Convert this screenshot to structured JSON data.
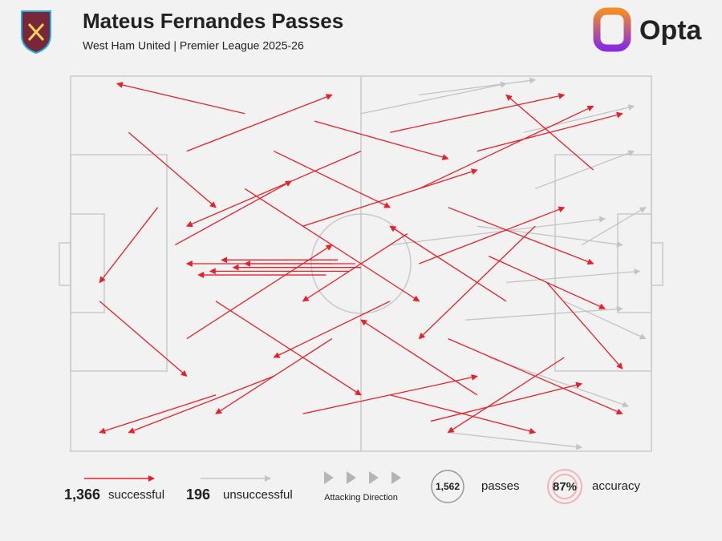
{
  "header": {
    "title": "Mateus Fernandes Passes",
    "subtitle": "West Ham United | Premier League 2025-26",
    "brand": "Opta"
  },
  "passes": {
    "successful": [
      [
        45,
        50,
        20,
        50
      ],
      [
        48,
        52,
        24,
        52
      ],
      [
        50,
        51,
        28,
        51
      ],
      [
        44,
        53,
        22,
        53
      ],
      [
        46,
        49,
        26,
        49
      ],
      [
        49,
        50,
        30,
        50
      ],
      [
        20,
        20,
        45,
        5
      ],
      [
        30,
        10,
        8,
        2
      ],
      [
        55,
        15,
        85,
        5
      ],
      [
        60,
        30,
        90,
        8
      ],
      [
        70,
        20,
        95,
        10
      ],
      [
        15,
        35,
        5,
        55
      ],
      [
        25,
        60,
        50,
        85
      ],
      [
        35,
        80,
        10,
        95
      ],
      [
        55,
        85,
        80,
        95
      ],
      [
        65,
        70,
        95,
        90
      ],
      [
        75,
        60,
        55,
        40
      ],
      [
        40,
        40,
        70,
        25
      ],
      [
        30,
        30,
        60,
        60
      ],
      [
        50,
        20,
        20,
        40
      ],
      [
        60,
        50,
        85,
        35
      ],
      [
        80,
        40,
        60,
        70
      ],
      [
        20,
        70,
        45,
        45
      ],
      [
        40,
        90,
        70,
        80
      ],
      [
        55,
        60,
        35,
        75
      ],
      [
        85,
        75,
        65,
        95
      ],
      [
        10,
        15,
        25,
        35
      ],
      [
        5,
        60,
        20,
        80
      ],
      [
        70,
        85,
        50,
        65
      ],
      [
        65,
        35,
        90,
        50
      ],
      [
        45,
        70,
        25,
        90
      ],
      [
        35,
        20,
        55,
        35
      ],
      [
        90,
        25,
        75,
        5
      ],
      [
        25,
        85,
        5,
        95
      ],
      [
        58,
        42,
        40,
        60
      ],
      [
        72,
        48,
        92,
        62
      ],
      [
        18,
        45,
        38,
        28
      ],
      [
        62,
        92,
        88,
        82
      ],
      [
        42,
        12,
        65,
        22
      ],
      [
        82,
        55,
        95,
        78
      ]
    ],
    "unsuccessful": [
      [
        70,
        40,
        95,
        45
      ],
      [
        75,
        55,
        98,
        52
      ],
      [
        80,
        30,
        97,
        20
      ],
      [
        85,
        60,
        99,
        70
      ],
      [
        60,
        5,
        80,
        1
      ],
      [
        65,
        95,
        88,
        99
      ],
      [
        72,
        75,
        96,
        88
      ],
      [
        55,
        45,
        92,
        38
      ],
      [
        78,
        15,
        97,
        8
      ],
      [
        68,
        65,
        95,
        62
      ],
      [
        50,
        10,
        75,
        2
      ],
      [
        88,
        45,
        99,
        35
      ]
    ]
  },
  "legend": {
    "successful_count": "1,366",
    "successful": "successful",
    "unsuccessful_count": "196",
    "unsuccessful": "unsuccessful",
    "direction": "Attacking Direction",
    "total": "1,562",
    "total_label": "passes",
    "accuracy": "87%",
    "accuracy_label": "accuracy"
  }
}
